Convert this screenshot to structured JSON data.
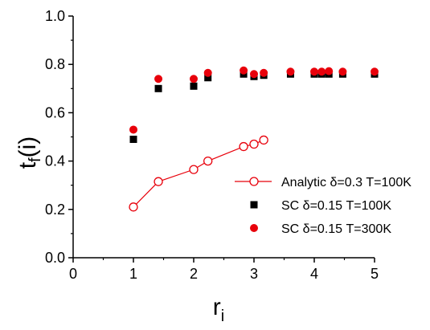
{
  "chart_data": {
    "type": "scatter",
    "xlabel": {
      "main": "r",
      "sub": "i"
    },
    "ylabel": {
      "main": "t",
      "sub": "f",
      "suffix": "(i)"
    },
    "xlim": [
      0,
      5
    ],
    "ylim": [
      0.0,
      1.0
    ],
    "x_ticks": [
      "0",
      "1",
      "2",
      "3",
      "4",
      "5"
    ],
    "y_ticks": [
      "0.0",
      "0.2",
      "0.4",
      "0.6",
      "0.8",
      "1.0"
    ],
    "grid": false,
    "legend_position": "lower-right",
    "series": [
      {
        "name": "Analytic δ=0.3 T=100K",
        "style": "line-open-circle",
        "color": "#e8000b",
        "x": [
          1.0,
          1.414,
          2.0,
          2.236,
          2.828,
          3.0,
          3.162
        ],
        "y": [
          0.21,
          0.315,
          0.365,
          0.4,
          0.46,
          0.47,
          0.487
        ]
      },
      {
        "name": "SC δ=0.15 T=100K",
        "style": "filled-square",
        "color": "#000000",
        "x": [
          1.0,
          1.414,
          2.0,
          2.236,
          2.828,
          3.0,
          3.162,
          3.606,
          4.0,
          4.123,
          4.243,
          4.472,
          5.0
        ],
        "y": [
          0.49,
          0.7,
          0.71,
          0.745,
          0.76,
          0.75,
          0.755,
          0.76,
          0.76,
          0.76,
          0.76,
          0.76,
          0.76
        ]
      },
      {
        "name": "SC δ=0.15 T=300K",
        "style": "filled-circle",
        "color": "#e8000b",
        "x": [
          1.0,
          1.414,
          2.0,
          2.236,
          2.828,
          3.0,
          3.162,
          3.606,
          4.0,
          4.123,
          4.243,
          4.472,
          5.0
        ],
        "y": [
          0.53,
          0.74,
          0.74,
          0.765,
          0.775,
          0.76,
          0.765,
          0.77,
          0.77,
          0.77,
          0.772,
          0.77,
          0.77
        ]
      }
    ]
  }
}
